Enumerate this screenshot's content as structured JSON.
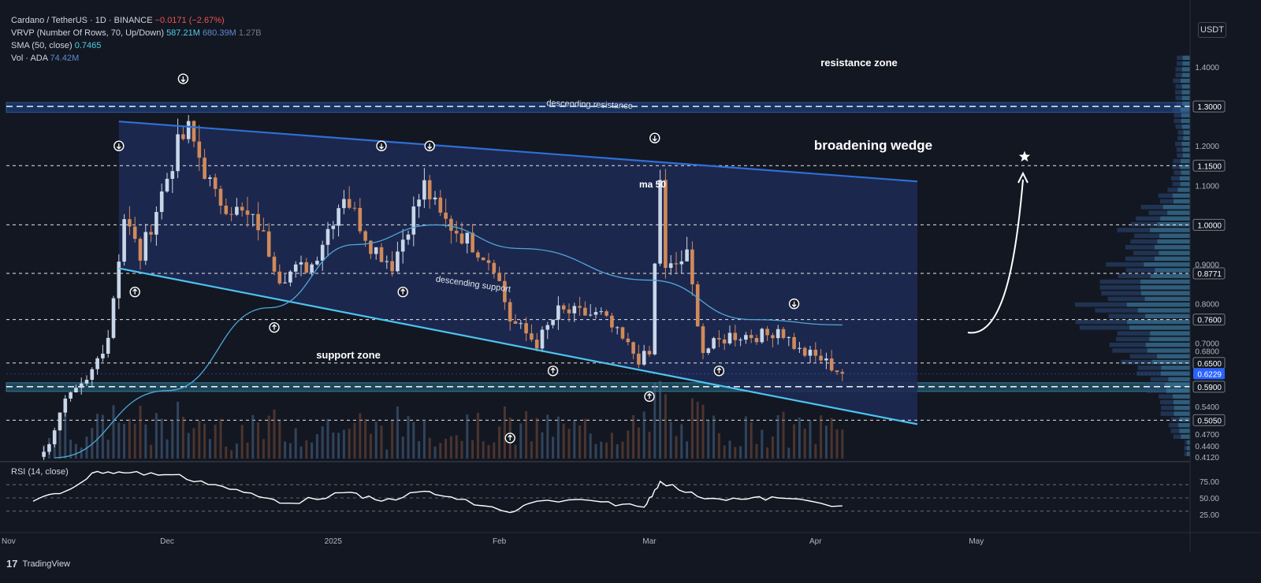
{
  "legend": {
    "pair": "Cardano / TetherUS · 1D · BINANCE",
    "change": "−0.0171 (−2.67%)",
    "vrvp_label": "VRVP (Number Of Rows, 70, Up/Down)",
    "vrvp_v1": "587.21M",
    "vrvp_v2": "680.39M",
    "vrvp_v3": "1.27B",
    "sma_label": "SMA (50, close)",
    "sma_value": "0.7465",
    "vol_label": "Vol · ADA",
    "vol_value": "74.42M"
  },
  "currency_button": "USDT",
  "brand": "TradingView",
  "colors": {
    "background": "#131722",
    "wedge_fill": "#1e2a55",
    "up_candle": "#c9d6e8",
    "down_candle": "#d08a5a",
    "sma": "#4ea7d8",
    "resistance_line": "#2f6fd6",
    "support_line": "#4dc3f0",
    "support_zone": "#1f4f63",
    "resistance_zone": "#1b3f7a"
  },
  "annotations": {
    "resistance_zone": "resistance zone",
    "support_zone": "support zone",
    "descending_resistance": "descending resistance",
    "descending_support": "descending support",
    "pattern": "broadening wedge",
    "ma": "ma 50"
  },
  "chart_data": {
    "type": "candlestick",
    "price_axis": {
      "min": 0.412,
      "max": 1.43,
      "ticks": [
        "1.4000",
        "1.2000",
        "1.1000",
        "0.9000",
        "0.8000",
        "0.7000",
        "0.6800",
        "0.5400",
        "0.4700",
        "0.4400",
        "0.4120"
      ],
      "levels": [
        "1.3000",
        "1.1500",
        "1.0000",
        "0.8771",
        "0.7600",
        "0.6500",
        "0.5900",
        "0.5050"
      ],
      "current_price": "0.6229"
    },
    "time_axis": [
      "Nov",
      "Dec",
      "2025",
      "Feb",
      "Mar",
      "Apr",
      "May"
    ],
    "anchor_points": [
      {
        "date": "2024-11-08",
        "price": 0.42
      },
      {
        "date": "2024-11-12",
        "price": 0.55
      },
      {
        "date": "2024-11-16",
        "price": 0.6
      },
      {
        "date": "2024-11-20",
        "price": 0.72
      },
      {
        "date": "2024-11-23",
        "price": 1.02
      },
      {
        "date": "2024-11-26",
        "price": 0.92
      },
      {
        "date": "2024-12-03",
        "price": 1.2
      },
      {
        "date": "2024-12-05",
        "price": 1.24
      },
      {
        "date": "2024-12-10",
        "price": 1.07
      },
      {
        "date": "2024-12-18",
        "price": 1.0
      },
      {
        "date": "2024-12-22",
        "price": 0.87
      },
      {
        "date": "2024-12-28",
        "price": 0.9
      },
      {
        "date": "2025-01-03",
        "price": 1.08
      },
      {
        "date": "2025-01-08",
        "price": 0.95
      },
      {
        "date": "2025-01-12",
        "price": 0.9
      },
      {
        "date": "2025-01-18",
        "price": 1.1
      },
      {
        "date": "2025-01-21",
        "price": 1.02
      },
      {
        "date": "2025-01-27",
        "price": 0.95
      },
      {
        "date": "2025-01-31",
        "price": 0.9
      },
      {
        "date": "2025-02-03",
        "price": 0.76
      },
      {
        "date": "2025-02-08",
        "price": 0.7
      },
      {
        "date": "2025-02-12",
        "price": 0.78
      },
      {
        "date": "2025-02-20",
        "price": 0.77
      },
      {
        "date": "2025-02-27",
        "price": 0.66
      },
      {
        "date": "2025-03-01",
        "price": 0.67
      },
      {
        "date": "2025-03-03",
        "price": 1.12
      },
      {
        "date": "2025-03-04",
        "price": 0.88
      },
      {
        "date": "2025-03-08",
        "price": 0.92
      },
      {
        "date": "2025-03-11",
        "price": 0.68
      },
      {
        "date": "2025-03-16",
        "price": 0.72
      },
      {
        "date": "2025-03-23",
        "price": 0.72
      },
      {
        "date": "2025-03-25",
        "price": 0.74
      },
      {
        "date": "2025-03-29",
        "price": 0.68
      },
      {
        "date": "2025-04-02",
        "price": 0.66
      },
      {
        "date": "2025-04-06",
        "price": 0.6229
      }
    ],
    "sma50": [
      {
        "date": "2024-11-10",
        "price": 0.41
      },
      {
        "date": "2024-12-01",
        "price": 0.58
      },
      {
        "date": "2024-12-20",
        "price": 0.79
      },
      {
        "date": "2025-01-05",
        "price": 0.95
      },
      {
        "date": "2025-01-20",
        "price": 1.0
      },
      {
        "date": "2025-02-05",
        "price": 0.94
      },
      {
        "date": "2025-03-01",
        "price": 0.86
      },
      {
        "date": "2025-03-20",
        "price": 0.76
      },
      {
        "date": "2025-04-06",
        "price": 0.7465
      }
    ],
    "rsi": {
      "label": "RSI (14, close)",
      "ticks": [
        "75.00",
        "50.00",
        "25.00"
      ],
      "values": [
        {
          "date": "2024-11-06",
          "v": 45
        },
        {
          "date": "2024-11-12",
          "v": 60
        },
        {
          "date": "2024-11-18",
          "v": 90
        },
        {
          "date": "2024-11-24",
          "v": 88
        },
        {
          "date": "2024-12-02",
          "v": 85
        },
        {
          "date": "2024-12-10",
          "v": 70
        },
        {
          "date": "2024-12-18",
          "v": 52
        },
        {
          "date": "2024-12-24",
          "v": 42
        },
        {
          "date": "2025-01-03",
          "v": 58
        },
        {
          "date": "2025-01-10",
          "v": 45
        },
        {
          "date": "2025-01-18",
          "v": 60
        },
        {
          "date": "2025-01-24",
          "v": 48
        },
        {
          "date": "2025-02-03",
          "v": 28
        },
        {
          "date": "2025-02-08",
          "v": 45
        },
        {
          "date": "2025-02-20",
          "v": 44
        },
        {
          "date": "2025-02-28",
          "v": 36
        },
        {
          "date": "2025-03-03",
          "v": 75
        },
        {
          "date": "2025-03-10",
          "v": 52
        },
        {
          "date": "2025-03-18",
          "v": 48
        },
        {
          "date": "2025-03-25",
          "v": 50
        },
        {
          "date": "2025-04-06",
          "v": 38
        }
      ]
    },
    "trendlines": {
      "descending_resistance": [
        {
          "date": "2024-11-22",
          "price": 1.262
        },
        {
          "date": "2025-04-20",
          "price": 1.11
        }
      ],
      "descending_support": [
        {
          "date": "2024-11-22",
          "price": 0.89
        },
        {
          "date": "2025-04-20",
          "price": 0.495
        }
      ]
    },
    "zones": {
      "resistance_zone": [
        1.285,
        1.31
      ],
      "support_zone": [
        0.578,
        0.6
      ]
    }
  }
}
